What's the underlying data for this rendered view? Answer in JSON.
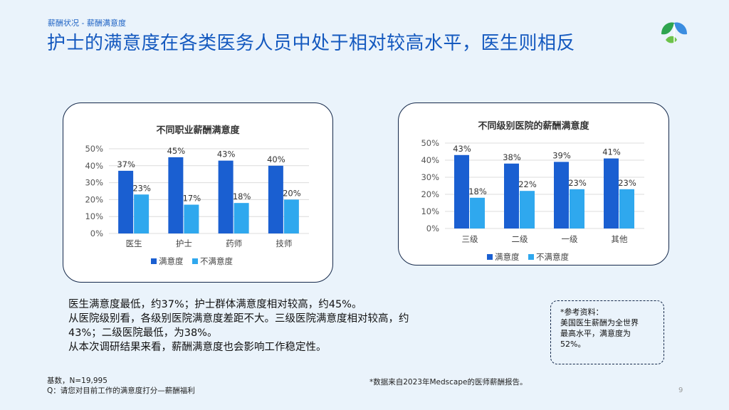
{
  "header": {
    "breadcrumb": "薪酬状况 - 薪酬满意度",
    "title": "护士的满意度在各类医务人员中处于相对较高水平，医生则相反"
  },
  "logo": {
    "icon": "leaf-logo-icon",
    "colors": [
      "#2ea44f",
      "#3b8de0"
    ]
  },
  "colors": {
    "satisfied": "#1a5fd1",
    "unsatisfied": "#2fa8ee",
    "title": "#1459bf"
  },
  "chart_data": [
    {
      "type": "bar",
      "title": "不同职业薪酬满意度",
      "categories": [
        "医生",
        "护士",
        "药师",
        "技师"
      ],
      "series": [
        {
          "name": "满意度",
          "values": [
            37,
            45,
            43,
            40
          ],
          "labels": [
            "37%",
            "45%",
            "43%",
            "40%"
          ]
        },
        {
          "name": "不满意度",
          "values": [
            23,
            17,
            18,
            20
          ],
          "labels": [
            "23%",
            "17%",
            "18%",
            "20%"
          ]
        }
      ],
      "yticks": [
        "0%",
        "10%",
        "20%",
        "30%",
        "40%",
        "50%"
      ],
      "ylim": [
        0,
        50
      ],
      "grid": true,
      "legend": "bottom"
    },
    {
      "type": "bar",
      "title": "不同级别医院的薪酬满意度",
      "categories": [
        "三级",
        "二级",
        "一级",
        "其他"
      ],
      "series": [
        {
          "name": "满意度",
          "values": [
            43,
            38,
            39,
            41
          ],
          "labels": [
            "43%",
            "38%",
            "39%",
            "41%"
          ]
        },
        {
          "name": "不满意度",
          "values": [
            18,
            22,
            23,
            23
          ],
          "labels": [
            "18%",
            "22%",
            "23%",
            "23%"
          ]
        }
      ],
      "yticks": [
        "0%",
        "10%",
        "20%",
        "30%",
        "40%",
        "50%"
      ],
      "ylim": [
        0,
        50
      ],
      "grid": true,
      "legend": "bottom"
    }
  ],
  "summary": {
    "lines": [
      "医生满意度最低，约37%；护士群体满意度相对较高，约45%。",
      "从医院级别看，各级别医院满意度差距不大。三级医院满意度相对较高，约",
      "43%；二级医院最低，为38%。",
      "从本次调研结果来看，薪酬满意度也会影响工作稳定性。"
    ]
  },
  "reference": {
    "heading": "*参考资料：",
    "lines": [
      "美国医生薪酬为全世界",
      "最高水平，满意度为",
      "52%。"
    ]
  },
  "footer": {
    "base": "基数，N=19,995",
    "question": "Q：请您对目前工作的满意度打分—薪酬福利",
    "note": "*数据来自2023年Medscape的医师薪酬报告。",
    "page": "9"
  }
}
